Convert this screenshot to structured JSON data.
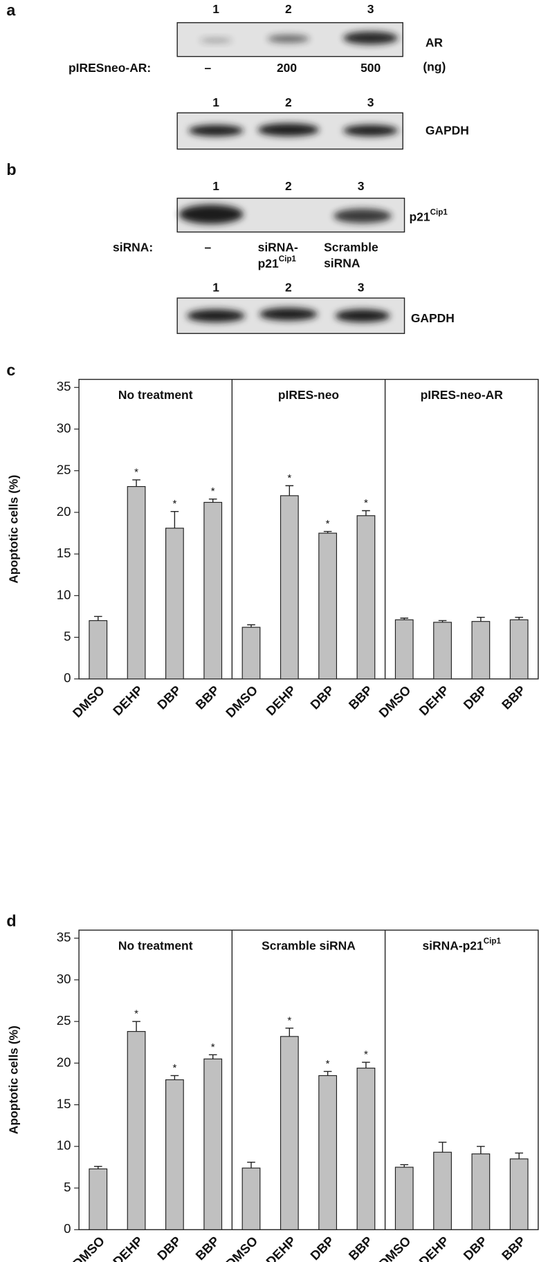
{
  "panel_a": {
    "letter": "a",
    "lanes": [
      "1",
      "2",
      "3"
    ],
    "blot_label": "AR",
    "unit": "(ng)",
    "treatment_label": "pIRESneo-AR:",
    "doses": [
      "–",
      "200",
      "500"
    ],
    "control_lanes": [
      "1",
      "2",
      "3"
    ],
    "control_label": "GAPDH"
  },
  "panel_b": {
    "letter": "b",
    "lanes": [
      "1",
      "2",
      "3"
    ],
    "blot_label": "p21",
    "blot_label_sup": "Cip1",
    "treatment_label": "siRNA:",
    "treatment_1": "–",
    "treatment_2": {
      "line1": "siRNA-",
      "line2": "p21",
      "line2_sup": "Cip1"
    },
    "treatment_3": {
      "line1": "Scramble",
      "line2": "siRNA"
    },
    "control_lanes": [
      "1",
      "2",
      "3"
    ],
    "control_label": "GAPDH"
  },
  "chart_data": [
    {
      "type": "bar",
      "letter": "c",
      "ylabel": "Apoptotic cells (%)",
      "ylim": [
        0,
        35
      ],
      "yticks": [
        0,
        5,
        10,
        15,
        20,
        25,
        30,
        35
      ],
      "color": "#c0c0c0",
      "groups": [
        {
          "title": "No treatment",
          "categories": [
            "DMSO",
            "DEHP",
            "DBP",
            "BBP"
          ],
          "values": [
            7.0,
            23.1,
            18.1,
            21.2
          ],
          "errors": [
            0.5,
            0.8,
            2.0,
            0.4
          ],
          "markers": [
            null,
            "*",
            "*",
            "*"
          ]
        },
        {
          "title": "pIRES-neo",
          "categories": [
            "DMSO",
            "DEHP",
            "DBP",
            "BBP"
          ],
          "values": [
            6.2,
            22.0,
            17.5,
            19.6
          ],
          "errors": [
            0.3,
            1.2,
            0.2,
            0.6
          ],
          "markers": [
            null,
            "*",
            "*",
            "*"
          ]
        },
        {
          "title": "pIRES-neo-AR",
          "categories": [
            "DMSO",
            "DEHP",
            "DBP",
            "BBP"
          ],
          "values": [
            7.1,
            6.8,
            6.9,
            7.1
          ],
          "errors": [
            0.2,
            0.2,
            0.5,
            0.3
          ],
          "markers": [
            null,
            null,
            null,
            null
          ]
        }
      ]
    },
    {
      "type": "bar",
      "letter": "d",
      "ylabel": "Apoptotic cells (%)",
      "ylim": [
        0,
        35
      ],
      "yticks": [
        0,
        5,
        10,
        15,
        20,
        25,
        30,
        35
      ],
      "color": "#c0c0c0",
      "groups": [
        {
          "title": "No treatment",
          "categories": [
            "DMSO",
            "DEHP",
            "DBP",
            "BBP"
          ],
          "values": [
            7.3,
            23.8,
            18.0,
            20.5
          ],
          "errors": [
            0.3,
            1.2,
            0.5,
            0.5
          ],
          "markers": [
            null,
            "*",
            "*",
            "*"
          ]
        },
        {
          "title": "Scramble siRNA",
          "categories": [
            "DMSO",
            "DEHP",
            "DBP",
            "BBP"
          ],
          "values": [
            7.4,
            23.2,
            18.5,
            19.4
          ],
          "errors": [
            0.7,
            1.0,
            0.5,
            0.7
          ],
          "markers": [
            null,
            "*",
            "*",
            "*"
          ]
        },
        {
          "title": "siRNA-p21",
          "title_sup": "Cip1",
          "categories": [
            "DMSO",
            "DEHP",
            "DBP",
            "BBP"
          ],
          "values": [
            7.5,
            9.3,
            9.1,
            8.5
          ],
          "errors": [
            0.3,
            1.2,
            0.9,
            0.7
          ],
          "markers": [
            null,
            null,
            null,
            null
          ]
        }
      ]
    }
  ]
}
